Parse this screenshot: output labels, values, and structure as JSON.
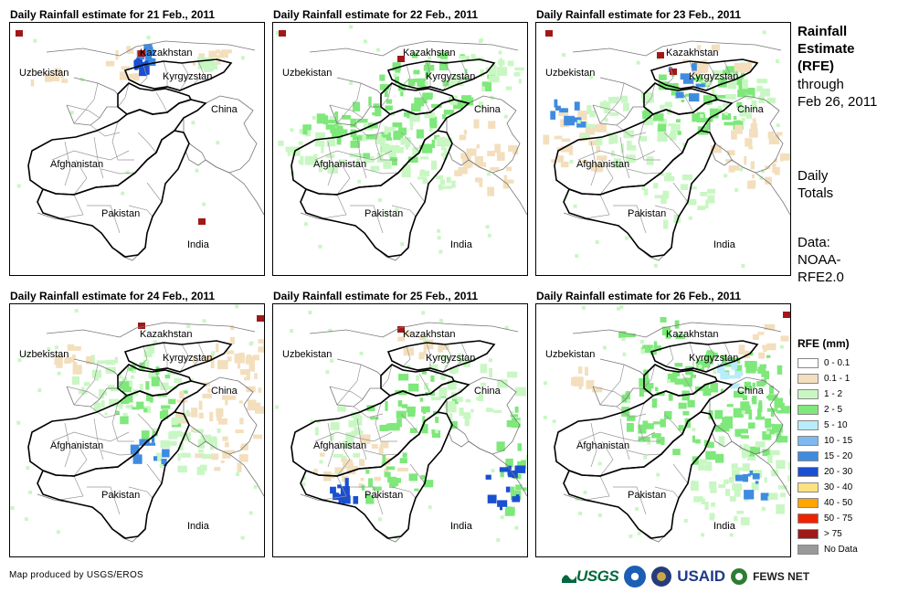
{
  "panels": [
    {
      "title": "Daily Rainfall estimate for 21 Feb., 2011"
    },
    {
      "title": "Daily Rainfall estimate for 22 Feb., 2011"
    },
    {
      "title": "Daily Rainfall estimate for 23 Feb., 2011"
    },
    {
      "title": "Daily Rainfall estimate for 24 Feb., 2011"
    },
    {
      "title": "Daily Rainfall estimate for 25 Feb., 2011"
    },
    {
      "title": "Daily Rainfall estimate for 26 Feb., 2011"
    }
  ],
  "map_labels": {
    "kazakhstan": "Kazakhstan",
    "uzbekistan": "Uzbekistan",
    "kyrgyzstan": "Kyrgyzstan",
    "china": "China",
    "afghanistan": "Afghanistan",
    "pakistan": "Pakistan",
    "india": "India"
  },
  "side": {
    "heading_lines": [
      "Rainfall",
      "Estimate",
      "(RFE)"
    ],
    "through_lines": [
      "through",
      "Feb 26, 2011"
    ],
    "daily_lines": [
      "Daily",
      "Totals"
    ],
    "data_lines": [
      "Data:",
      "NOAA-",
      "RFE2.0"
    ]
  },
  "legend": {
    "title": "RFE (mm)",
    "items": [
      {
        "label": "0 - 0.1",
        "color": "#ffffff"
      },
      {
        "label": "0.1 - 1",
        "color": "#f3dfbd"
      },
      {
        "label": "1 - 2",
        "color": "#c9f7c3"
      },
      {
        "label": "2 - 5",
        "color": "#7ee87a"
      },
      {
        "label": "5 - 10",
        "color": "#b8ecfa"
      },
      {
        "label": "10 - 15",
        "color": "#7db8f0"
      },
      {
        "label": "15 - 20",
        "color": "#3f8be0"
      },
      {
        "label": "20 - 30",
        "color": "#1a4fd0"
      },
      {
        "label": "30 - 40",
        "color": "#ffe180"
      },
      {
        "label": "40 - 50",
        "color": "#ffa500"
      },
      {
        "label": "50 - 75",
        "color": "#ee2200"
      },
      {
        "label": "> 75",
        "color": "#a01818"
      },
      {
        "label": "No Data",
        "color": "#999999"
      }
    ]
  },
  "credit": "Map produced by USGS/EROS",
  "logos": {
    "usgs": "USGS",
    "usaid": "USAID",
    "fews": "FEWS NET"
  }
}
